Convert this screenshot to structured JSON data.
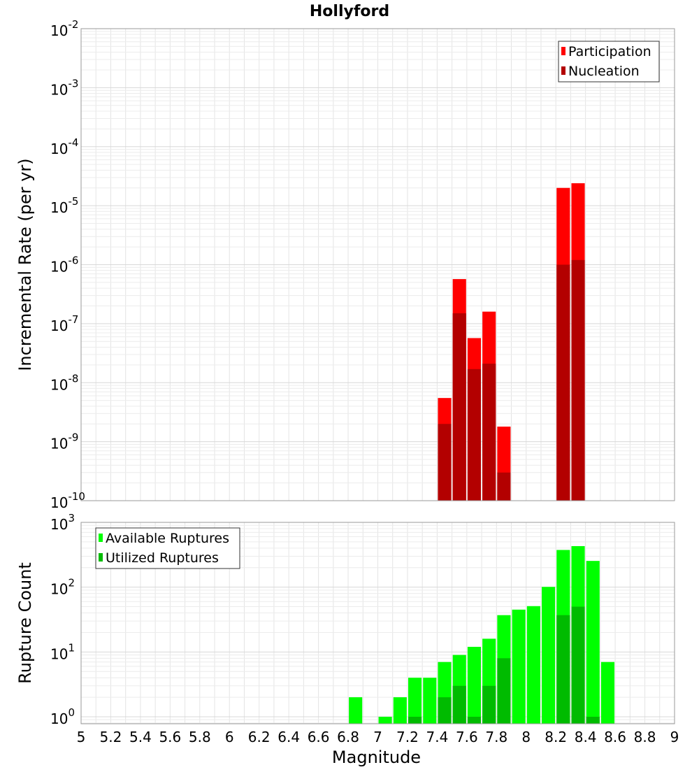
{
  "chart_data": [
    {
      "type": "bar",
      "title": "Hollyford",
      "xlabel": "",
      "ylabel": "Incremental Rate (per yr)",
      "yscale": "log",
      "ylim": [
        1e-10,
        0.01
      ],
      "xlim": [
        5,
        9
      ],
      "ytick_labels": [
        {
          "base": "10",
          "exp": "-10"
        },
        {
          "base": "10",
          "exp": "-9"
        },
        {
          "base": "10",
          "exp": "-8"
        },
        {
          "base": "10",
          "exp": "-7"
        },
        {
          "base": "10",
          "exp": "-6"
        },
        {
          "base": "10",
          "exp": "-5"
        },
        {
          "base": "10",
          "exp": "-4"
        },
        {
          "base": "10",
          "exp": "-3"
        },
        {
          "base": "10",
          "exp": "-2"
        }
      ],
      "grid": true,
      "legend_position": "top-right",
      "bar_width": 0.09,
      "series": [
        {
          "name": "Participation",
          "color": "#ff0000",
          "x": [
            7.45,
            7.55,
            7.65,
            7.75,
            7.85,
            8.25,
            8.35
          ],
          "values": [
            5.5e-09,
            5.7e-07,
            5.7e-08,
            1.6e-07,
            1.8e-09,
            2e-05,
            2.4e-05
          ]
        },
        {
          "name": "Nucleation",
          "color": "#b30000",
          "x": [
            7.45,
            7.55,
            7.65,
            7.75,
            7.85,
            8.25,
            8.35
          ],
          "values": [
            2e-09,
            1.5e-07,
            1.7e-08,
            2.1e-08,
            3e-10,
            1e-06,
            1.2e-06
          ]
        }
      ]
    },
    {
      "type": "bar",
      "title": "",
      "xlabel": "Magnitude",
      "ylabel": "Rupture Count",
      "yscale": "log",
      "ylim": [
        0.78,
        1000
      ],
      "xlim": [
        5,
        9
      ],
      "ytick_labels": [
        {
          "base": "10",
          "exp": "0"
        },
        {
          "base": "10",
          "exp": "1"
        },
        {
          "base": "10",
          "exp": "2"
        },
        {
          "base": "10",
          "exp": "3"
        }
      ],
      "xtick_labels": [
        "5",
        "5.2",
        "5.4",
        "5.6",
        "5.8",
        "6",
        "6.2",
        "6.4",
        "6.6",
        "6.8",
        "7",
        "7.2",
        "7.4",
        "7.6",
        "7.8",
        "8",
        "8.2",
        "8.4",
        "8.6",
        "8.8",
        "9"
      ],
      "grid": true,
      "legend_position": "top-left",
      "bar_width": 0.09,
      "series": [
        {
          "name": "Available Ruptures",
          "color": "#00ff00",
          "x": [
            6.85,
            7.05,
            7.15,
            7.25,
            7.35,
            7.45,
            7.55,
            7.65,
            7.75,
            7.85,
            7.95,
            8.05,
            8.15,
            8.25,
            8.35,
            8.45,
            8.55
          ],
          "values": [
            2,
            1,
            2,
            4,
            4,
            7,
            9,
            12,
            16,
            37,
            45,
            51,
            101,
            375,
            430,
            254,
            7
          ]
        },
        {
          "name": "Utilized Ruptures",
          "color": "#00bb00",
          "x": [
            7.25,
            7.45,
            7.55,
            7.65,
            7.75,
            7.85,
            8.25,
            8.35,
            8.45
          ],
          "values": [
            1,
            2,
            3,
            1,
            3,
            8,
            37,
            50,
            1
          ]
        }
      ]
    }
  ]
}
